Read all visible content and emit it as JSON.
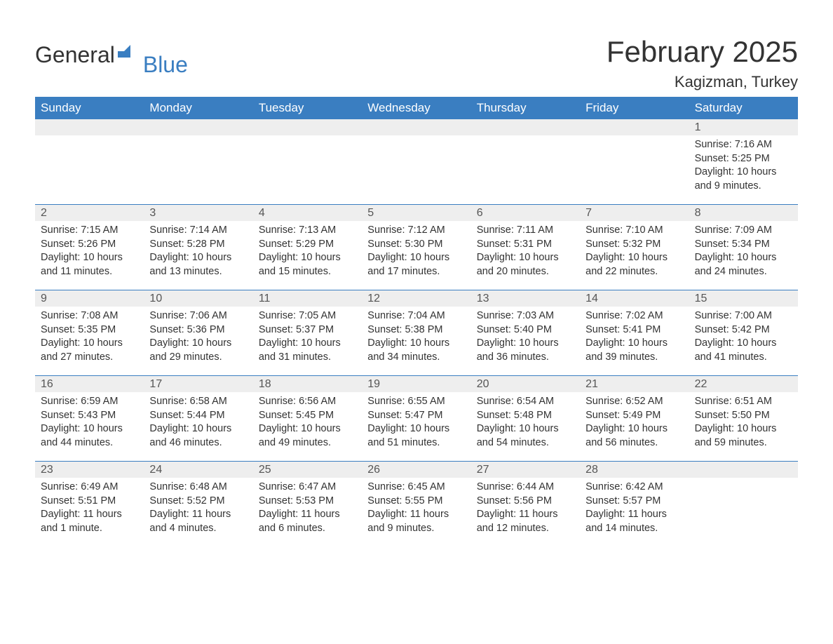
{
  "brand": {
    "part1": "General",
    "part2": "Blue"
  },
  "title": "February 2025",
  "location": "Kagizman, Turkey",
  "colors": {
    "header_bg": "#3a7ec1",
    "header_text": "#ffffff",
    "date_row_bg": "#eeeeee",
    "week_divider": "#3a7ec1",
    "body_text": "#333333",
    "brand_accent": "#3a7ec1"
  },
  "typography": {
    "title_fontsize": 42,
    "location_fontsize": 22,
    "day_header_fontsize": 17,
    "cell_fontsize": 14.5
  },
  "day_names": [
    "Sunday",
    "Monday",
    "Tuesday",
    "Wednesday",
    "Thursday",
    "Friday",
    "Saturday"
  ],
  "weeks": [
    [
      {
        "date": "",
        "sunrise": "",
        "sunset": "",
        "daylight": ""
      },
      {
        "date": "",
        "sunrise": "",
        "sunset": "",
        "daylight": ""
      },
      {
        "date": "",
        "sunrise": "",
        "sunset": "",
        "daylight": ""
      },
      {
        "date": "",
        "sunrise": "",
        "sunset": "",
        "daylight": ""
      },
      {
        "date": "",
        "sunrise": "",
        "sunset": "",
        "daylight": ""
      },
      {
        "date": "",
        "sunrise": "",
        "sunset": "",
        "daylight": ""
      },
      {
        "date": "1",
        "sunrise": "Sunrise: 7:16 AM",
        "sunset": "Sunset: 5:25 PM",
        "daylight": "Daylight: 10 hours and 9 minutes."
      }
    ],
    [
      {
        "date": "2",
        "sunrise": "Sunrise: 7:15 AM",
        "sunset": "Sunset: 5:26 PM",
        "daylight": "Daylight: 10 hours and 11 minutes."
      },
      {
        "date": "3",
        "sunrise": "Sunrise: 7:14 AM",
        "sunset": "Sunset: 5:28 PM",
        "daylight": "Daylight: 10 hours and 13 minutes."
      },
      {
        "date": "4",
        "sunrise": "Sunrise: 7:13 AM",
        "sunset": "Sunset: 5:29 PM",
        "daylight": "Daylight: 10 hours and 15 minutes."
      },
      {
        "date": "5",
        "sunrise": "Sunrise: 7:12 AM",
        "sunset": "Sunset: 5:30 PM",
        "daylight": "Daylight: 10 hours and 17 minutes."
      },
      {
        "date": "6",
        "sunrise": "Sunrise: 7:11 AM",
        "sunset": "Sunset: 5:31 PM",
        "daylight": "Daylight: 10 hours and 20 minutes."
      },
      {
        "date": "7",
        "sunrise": "Sunrise: 7:10 AM",
        "sunset": "Sunset: 5:32 PM",
        "daylight": "Daylight: 10 hours and 22 minutes."
      },
      {
        "date": "8",
        "sunrise": "Sunrise: 7:09 AM",
        "sunset": "Sunset: 5:34 PM",
        "daylight": "Daylight: 10 hours and 24 minutes."
      }
    ],
    [
      {
        "date": "9",
        "sunrise": "Sunrise: 7:08 AM",
        "sunset": "Sunset: 5:35 PM",
        "daylight": "Daylight: 10 hours and 27 minutes."
      },
      {
        "date": "10",
        "sunrise": "Sunrise: 7:06 AM",
        "sunset": "Sunset: 5:36 PM",
        "daylight": "Daylight: 10 hours and 29 minutes."
      },
      {
        "date": "11",
        "sunrise": "Sunrise: 7:05 AM",
        "sunset": "Sunset: 5:37 PM",
        "daylight": "Daylight: 10 hours and 31 minutes."
      },
      {
        "date": "12",
        "sunrise": "Sunrise: 7:04 AM",
        "sunset": "Sunset: 5:38 PM",
        "daylight": "Daylight: 10 hours and 34 minutes."
      },
      {
        "date": "13",
        "sunrise": "Sunrise: 7:03 AM",
        "sunset": "Sunset: 5:40 PM",
        "daylight": "Daylight: 10 hours and 36 minutes."
      },
      {
        "date": "14",
        "sunrise": "Sunrise: 7:02 AM",
        "sunset": "Sunset: 5:41 PM",
        "daylight": "Daylight: 10 hours and 39 minutes."
      },
      {
        "date": "15",
        "sunrise": "Sunrise: 7:00 AM",
        "sunset": "Sunset: 5:42 PM",
        "daylight": "Daylight: 10 hours and 41 minutes."
      }
    ],
    [
      {
        "date": "16",
        "sunrise": "Sunrise: 6:59 AM",
        "sunset": "Sunset: 5:43 PM",
        "daylight": "Daylight: 10 hours and 44 minutes."
      },
      {
        "date": "17",
        "sunrise": "Sunrise: 6:58 AM",
        "sunset": "Sunset: 5:44 PM",
        "daylight": "Daylight: 10 hours and 46 minutes."
      },
      {
        "date": "18",
        "sunrise": "Sunrise: 6:56 AM",
        "sunset": "Sunset: 5:45 PM",
        "daylight": "Daylight: 10 hours and 49 minutes."
      },
      {
        "date": "19",
        "sunrise": "Sunrise: 6:55 AM",
        "sunset": "Sunset: 5:47 PM",
        "daylight": "Daylight: 10 hours and 51 minutes."
      },
      {
        "date": "20",
        "sunrise": "Sunrise: 6:54 AM",
        "sunset": "Sunset: 5:48 PM",
        "daylight": "Daylight: 10 hours and 54 minutes."
      },
      {
        "date": "21",
        "sunrise": "Sunrise: 6:52 AM",
        "sunset": "Sunset: 5:49 PM",
        "daylight": "Daylight: 10 hours and 56 minutes."
      },
      {
        "date": "22",
        "sunrise": "Sunrise: 6:51 AM",
        "sunset": "Sunset: 5:50 PM",
        "daylight": "Daylight: 10 hours and 59 minutes."
      }
    ],
    [
      {
        "date": "23",
        "sunrise": "Sunrise: 6:49 AM",
        "sunset": "Sunset: 5:51 PM",
        "daylight": "Daylight: 11 hours and 1 minute."
      },
      {
        "date": "24",
        "sunrise": "Sunrise: 6:48 AM",
        "sunset": "Sunset: 5:52 PM",
        "daylight": "Daylight: 11 hours and 4 minutes."
      },
      {
        "date": "25",
        "sunrise": "Sunrise: 6:47 AM",
        "sunset": "Sunset: 5:53 PM",
        "daylight": "Daylight: 11 hours and 6 minutes."
      },
      {
        "date": "26",
        "sunrise": "Sunrise: 6:45 AM",
        "sunset": "Sunset: 5:55 PM",
        "daylight": "Daylight: 11 hours and 9 minutes."
      },
      {
        "date": "27",
        "sunrise": "Sunrise: 6:44 AM",
        "sunset": "Sunset: 5:56 PM",
        "daylight": "Daylight: 11 hours and 12 minutes."
      },
      {
        "date": "28",
        "sunrise": "Sunrise: 6:42 AM",
        "sunset": "Sunset: 5:57 PM",
        "daylight": "Daylight: 11 hours and 14 minutes."
      },
      {
        "date": "",
        "sunrise": "",
        "sunset": "",
        "daylight": ""
      }
    ]
  ]
}
